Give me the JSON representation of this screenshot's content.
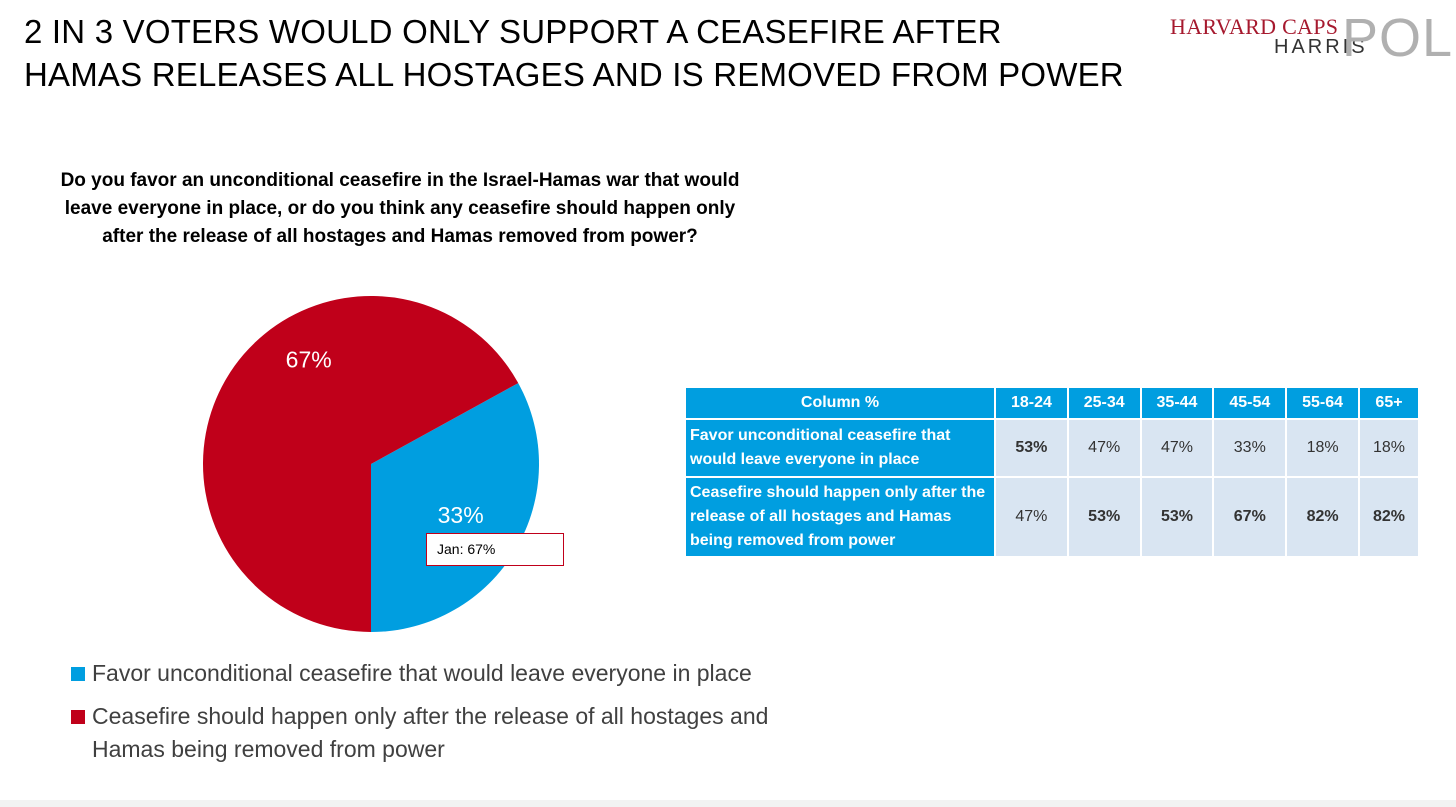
{
  "headline": {
    "line1": "2 IN 3 VOTERS WOULD ONLY SUPPORT A CEASEFIRE AFTER",
    "line2": "HAMAS RELEASES ALL HOSTAGES AND IS REMOVED FROM POWER"
  },
  "logo": {
    "harvard": "HARVARD CAPS",
    "harris": "HARRIS",
    "poll": "POLL"
  },
  "question": "Do you favor an unconditional ceasefire in the Israel-Hamas war that would leave everyone in place, or do you think any ceasefire should happen only after the release of all hostages and Hamas removed from power?",
  "chart_data": {
    "type": "pie",
    "title": "",
    "slices": [
      {
        "label": "Favor unconditional ceasefire that would leave everyone in place",
        "value": 33,
        "display": "33%",
        "color": "#009ee0"
      },
      {
        "label": "Ceasefire should happen only after the release of all hostages and Hamas being removed from power",
        "value": 67,
        "display": "67%",
        "color": "#c0001a"
      }
    ],
    "annotation": "Jan: 67%",
    "legend_position": "bottom"
  },
  "table": {
    "corner": "Column %",
    "columns": [
      "18-24",
      "25-34",
      "35-44",
      "45-54",
      "55-64",
      "65+"
    ],
    "rows": [
      {
        "label": "Favor unconditional ceasefire that would leave everyone in place",
        "values": [
          "53%",
          "47%",
          "47%",
          "33%",
          "18%",
          "18%"
        ],
        "bold": [
          true,
          false,
          false,
          false,
          false,
          false
        ]
      },
      {
        "label": "Ceasefire should happen only after the release of all hostages and Hamas being removed from power",
        "values": [
          "47%",
          "53%",
          "53%",
          "67%",
          "82%",
          "82%"
        ],
        "bold": [
          false,
          true,
          true,
          true,
          true,
          true
        ]
      }
    ]
  }
}
